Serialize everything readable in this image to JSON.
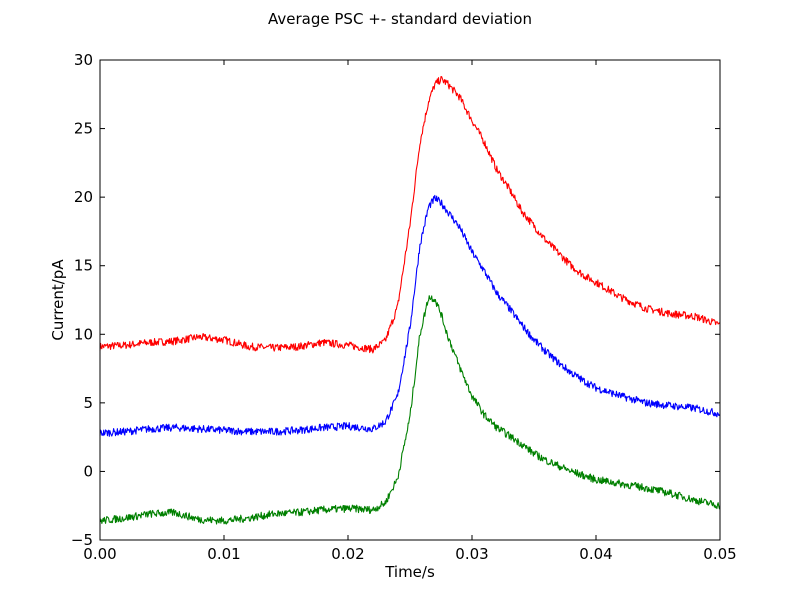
{
  "chart_data": {
    "type": "line",
    "title": "Average PSC +- standard deviation",
    "xlabel": "Time/s",
    "ylabel": "Current/pA",
    "xlim": [
      0.0,
      0.05
    ],
    "ylim": [
      -5,
      30
    ],
    "xticks": [
      0.0,
      0.01,
      0.02,
      0.03,
      0.04,
      0.05
    ],
    "xtick_labels": [
      "0.00",
      "0.01",
      "0.02",
      "0.03",
      "0.04",
      "0.05"
    ],
    "yticks": [
      -5,
      0,
      5,
      10,
      15,
      20,
      25,
      30
    ],
    "ytick_labels": [
      "−5",
      "0",
      "5",
      "10",
      "15",
      "20",
      "25",
      "30"
    ],
    "grid": false,
    "series": [
      {
        "color": "#ff0000",
        "x": [
          0.0,
          0.002,
          0.004,
          0.006,
          0.008,
          0.01,
          0.012,
          0.014,
          0.016,
          0.018,
          0.02,
          0.022,
          0.023,
          0.024,
          0.025,
          0.0258,
          0.0265,
          0.027,
          0.0275,
          0.028,
          0.029,
          0.03,
          0.031,
          0.032,
          0.033,
          0.034,
          0.035,
          0.036,
          0.037,
          0.038,
          0.039,
          0.04,
          0.042,
          0.044,
          0.046,
          0.048,
          0.05
        ],
        "y": [
          9.1,
          9.2,
          9.4,
          9.5,
          9.8,
          9.6,
          9.1,
          9.0,
          9.1,
          9.4,
          9.2,
          8.9,
          9.5,
          12.0,
          18.0,
          24.0,
          27.0,
          28.2,
          28.6,
          28.3,
          27.3,
          25.6,
          24.0,
          22.0,
          20.6,
          19.0,
          17.9,
          16.8,
          15.9,
          15.0,
          14.3,
          13.8,
          12.7,
          11.9,
          11.5,
          11.3,
          10.7
        ]
      },
      {
        "color": "#0000ff",
        "x": [
          0.0,
          0.002,
          0.004,
          0.006,
          0.008,
          0.01,
          0.012,
          0.014,
          0.016,
          0.018,
          0.02,
          0.022,
          0.023,
          0.024,
          0.025,
          0.0258,
          0.0265,
          0.027,
          0.0275,
          0.028,
          0.029,
          0.03,
          0.031,
          0.032,
          0.033,
          0.034,
          0.035,
          0.036,
          0.037,
          0.038,
          0.039,
          0.04,
          0.042,
          0.044,
          0.046,
          0.048,
          0.05
        ],
        "y": [
          2.8,
          2.9,
          3.1,
          3.2,
          3.1,
          3.0,
          2.9,
          2.9,
          3.0,
          3.2,
          3.3,
          3.1,
          3.6,
          5.5,
          10.5,
          16.5,
          19.3,
          19.9,
          19.6,
          19.0,
          17.8,
          16.0,
          14.6,
          13.0,
          11.9,
          10.7,
          9.6,
          8.7,
          7.9,
          7.2,
          6.6,
          6.1,
          5.5,
          5.0,
          4.8,
          4.6,
          4.2
        ]
      },
      {
        "color": "#008000",
        "x": [
          0.0,
          0.002,
          0.004,
          0.006,
          0.008,
          0.01,
          0.012,
          0.014,
          0.016,
          0.018,
          0.02,
          0.022,
          0.023,
          0.024,
          0.025,
          0.0258,
          0.0265,
          0.027,
          0.0275,
          0.028,
          0.029,
          0.03,
          0.031,
          0.032,
          0.033,
          0.034,
          0.035,
          0.036,
          0.037,
          0.038,
          0.039,
          0.04,
          0.042,
          0.044,
          0.046,
          0.048,
          0.05
        ],
        "y": [
          -3.6,
          -3.4,
          -3.1,
          -3.0,
          -3.5,
          -3.6,
          -3.4,
          -3.1,
          -3.0,
          -2.8,
          -2.7,
          -2.8,
          -2.3,
          -0.5,
          4.0,
          10.0,
          12.7,
          12.6,
          11.5,
          10.0,
          7.6,
          5.5,
          4.1,
          3.2,
          2.6,
          2.0,
          1.3,
          0.8,
          0.4,
          0.0,
          -0.3,
          -0.6,
          -0.9,
          -1.2,
          -1.6,
          -2.1,
          -2.5
        ]
      }
    ]
  }
}
